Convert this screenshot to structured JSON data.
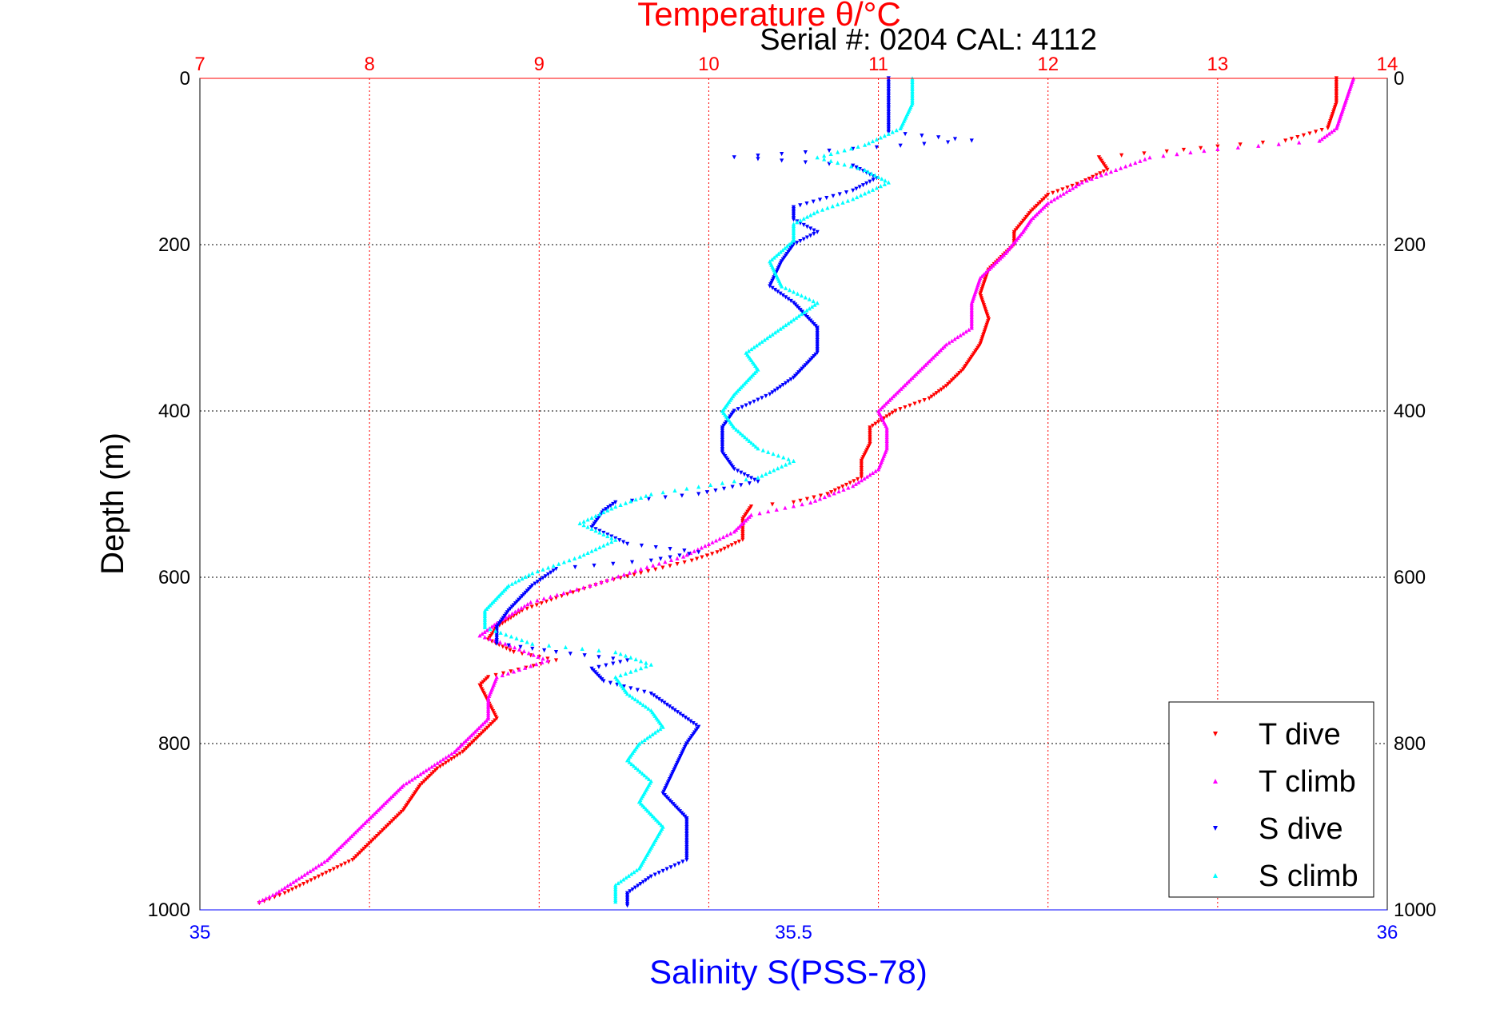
{
  "chart_data": {
    "type": "scatter",
    "title": "Temperature θ/°C",
    "subtitle": "Serial #: 0204  CAL: 4112",
    "ylabel": "Depth (m)",
    "xlabel_bottom": "Salinity S(PSS-78)",
    "xlabel_top": "Temperature θ/°C",
    "ylim": [
      0,
      1000
    ],
    "y_reversed": true,
    "xlim_top": [
      7,
      14
    ],
    "xlim_bottom": [
      35,
      36
    ],
    "yticks": [
      "0",
      "200",
      "400",
      "600",
      "800",
      "1000"
    ],
    "xticks_top": [
      "7",
      "8",
      "9",
      "10",
      "11",
      "12",
      "13",
      "14"
    ],
    "xticks_bottom": [
      "35",
      "35.5",
      "36"
    ],
    "grid": true,
    "legend_position": "bottom-right",
    "colors": {
      "top_axis": "#ff0000",
      "bottom_axis": "#0000ff",
      "grid": "#000000"
    },
    "series": [
      {
        "name": "T dive",
        "axis": "top",
        "color": "#ff0000",
        "marker": "triangle-down",
        "points": [
          [
            13.7,
            0
          ],
          [
            13.7,
            30
          ],
          [
            13.65,
            60
          ],
          [
            13.4,
            75
          ],
          [
            13.0,
            82
          ],
          [
            12.7,
            88
          ],
          [
            12.3,
            95
          ],
          [
            12.35,
            110
          ],
          [
            12.2,
            125
          ],
          [
            12.0,
            140
          ],
          [
            11.9,
            160
          ],
          [
            11.8,
            185
          ],
          [
            11.8,
            200
          ],
          [
            11.65,
            230
          ],
          [
            11.6,
            260
          ],
          [
            11.65,
            290
          ],
          [
            11.6,
            320
          ],
          [
            11.5,
            350
          ],
          [
            11.4,
            370
          ],
          [
            11.3,
            385
          ],
          [
            11.1,
            400
          ],
          [
            10.95,
            420
          ],
          [
            10.95,
            440
          ],
          [
            10.9,
            460
          ],
          [
            10.9,
            480
          ],
          [
            10.7,
            500
          ],
          [
            10.5,
            510
          ],
          [
            10.25,
            515
          ],
          [
            10.2,
            530
          ],
          [
            10.2,
            555
          ],
          [
            10.05,
            570
          ],
          [
            9.9,
            580
          ],
          [
            9.6,
            595
          ],
          [
            9.4,
            605
          ],
          [
            9.1,
            625
          ],
          [
            8.9,
            640
          ],
          [
            8.75,
            660
          ],
          [
            8.7,
            675
          ],
          [
            8.85,
            690
          ],
          [
            9.1,
            700
          ],
          [
            8.7,
            720
          ],
          [
            8.65,
            730
          ],
          [
            8.7,
            750
          ],
          [
            8.75,
            770
          ],
          [
            8.65,
            790
          ],
          [
            8.55,
            810
          ],
          [
            8.4,
            830
          ],
          [
            8.3,
            850
          ],
          [
            8.2,
            880
          ],
          [
            8.1,
            900
          ],
          [
            8.0,
            920
          ],
          [
            7.9,
            940
          ],
          [
            7.7,
            960
          ],
          [
            7.5,
            980
          ],
          [
            7.35,
            992
          ]
        ]
      },
      {
        "name": "T climb",
        "axis": "top",
        "color": "#ff00ff",
        "marker": "triangle-up",
        "points": [
          [
            13.8,
            0
          ],
          [
            13.75,
            30
          ],
          [
            13.7,
            60
          ],
          [
            13.6,
            75
          ],
          [
            13.0,
            85
          ],
          [
            12.6,
            95
          ],
          [
            12.4,
            110
          ],
          [
            12.2,
            125
          ],
          [
            12.0,
            150
          ],
          [
            11.9,
            170
          ],
          [
            11.85,
            185
          ],
          [
            11.75,
            210
          ],
          [
            11.6,
            240
          ],
          [
            11.55,
            270
          ],
          [
            11.55,
            300
          ],
          [
            11.4,
            320
          ],
          [
            11.3,
            340
          ],
          [
            11.2,
            360
          ],
          [
            11.1,
            380
          ],
          [
            11.0,
            400
          ],
          [
            11.05,
            420
          ],
          [
            11.05,
            445
          ],
          [
            11.0,
            470
          ],
          [
            10.85,
            490
          ],
          [
            10.6,
            510
          ],
          [
            10.25,
            525
          ],
          [
            10.15,
            545
          ],
          [
            10.0,
            560
          ],
          [
            9.85,
            575
          ],
          [
            9.6,
            590
          ],
          [
            9.3,
            610
          ],
          [
            8.95,
            630
          ],
          [
            8.75,
            655
          ],
          [
            8.65,
            670
          ],
          [
            8.8,
            680
          ],
          [
            9.05,
            700
          ],
          [
            8.75,
            720
          ],
          [
            8.7,
            745
          ],
          [
            8.7,
            770
          ],
          [
            8.6,
            790
          ],
          [
            8.5,
            810
          ],
          [
            8.35,
            830
          ],
          [
            8.2,
            850
          ],
          [
            8.05,
            880
          ],
          [
            7.95,
            900
          ],
          [
            7.85,
            920
          ],
          [
            7.75,
            940
          ],
          [
            7.6,
            960
          ],
          [
            7.45,
            980
          ],
          [
            7.35,
            990
          ]
        ]
      },
      {
        "name": "S dive",
        "axis": "bottom",
        "color": "#0000ff",
        "marker": "triangle-down",
        "points": [
          [
            35.58,
            0
          ],
          [
            35.58,
            30
          ],
          [
            35.58,
            65
          ],
          [
            35.65,
            75
          ],
          [
            35.55,
            85
          ],
          [
            35.45,
            95
          ],
          [
            35.55,
            105
          ],
          [
            35.57,
            120
          ],
          [
            35.55,
            135
          ],
          [
            35.5,
            155
          ],
          [
            35.5,
            170
          ],
          [
            35.52,
            185
          ],
          [
            35.5,
            200
          ],
          [
            35.49,
            220
          ],
          [
            35.48,
            250
          ],
          [
            35.5,
            270
          ],
          [
            35.52,
            300
          ],
          [
            35.52,
            330
          ],
          [
            35.5,
            360
          ],
          [
            35.48,
            380
          ],
          [
            35.45,
            400
          ],
          [
            35.44,
            420
          ],
          [
            35.44,
            450
          ],
          [
            35.45,
            470
          ],
          [
            35.47,
            485
          ],
          [
            35.42,
            500
          ],
          [
            35.35,
            510
          ],
          [
            35.34,
            520
          ],
          [
            35.33,
            540
          ],
          [
            35.36,
            560
          ],
          [
            35.42,
            570
          ],
          [
            35.38,
            580
          ],
          [
            35.3,
            590
          ],
          [
            35.28,
            610
          ],
          [
            35.27,
            625
          ],
          [
            35.26,
            640
          ],
          [
            35.25,
            660
          ],
          [
            35.25,
            680
          ],
          [
            35.3,
            690
          ],
          [
            35.36,
            700
          ],
          [
            35.33,
            710
          ],
          [
            35.34,
            725
          ],
          [
            35.38,
            740
          ],
          [
            35.4,
            760
          ],
          [
            35.42,
            780
          ],
          [
            35.41,
            800
          ],
          [
            35.4,
            830
          ],
          [
            35.39,
            860
          ],
          [
            35.41,
            890
          ],
          [
            35.41,
            920
          ],
          [
            35.41,
            940
          ],
          [
            35.38,
            960
          ],
          [
            35.36,
            980
          ],
          [
            35.36,
            995
          ]
        ]
      },
      {
        "name": "S climb",
        "axis": "bottom",
        "color": "#00ffff",
        "marker": "triangle-up",
        "points": [
          [
            35.6,
            0
          ],
          [
            35.6,
            30
          ],
          [
            35.59,
            60
          ],
          [
            35.56,
            80
          ],
          [
            35.52,
            95
          ],
          [
            35.56,
            110
          ],
          [
            35.58,
            125
          ],
          [
            35.55,
            145
          ],
          [
            35.52,
            160
          ],
          [
            35.5,
            175
          ],
          [
            35.5,
            195
          ],
          [
            35.48,
            220
          ],
          [
            35.49,
            250
          ],
          [
            35.52,
            270
          ],
          [
            35.5,
            290
          ],
          [
            35.48,
            310
          ],
          [
            35.46,
            330
          ],
          [
            35.47,
            350
          ],
          [
            35.45,
            380
          ],
          [
            35.44,
            400
          ],
          [
            35.45,
            420
          ],
          [
            35.47,
            445
          ],
          [
            35.5,
            460
          ],
          [
            35.47,
            480
          ],
          [
            35.38,
            500
          ],
          [
            35.35,
            515
          ],
          [
            35.32,
            535
          ],
          [
            35.35,
            555
          ],
          [
            35.32,
            575
          ],
          [
            35.28,
            595
          ],
          [
            35.26,
            610
          ],
          [
            35.25,
            625
          ],
          [
            35.24,
            640
          ],
          [
            35.24,
            660
          ],
          [
            35.28,
            680
          ],
          [
            35.35,
            690
          ],
          [
            35.38,
            705
          ],
          [
            35.35,
            720
          ],
          [
            35.36,
            740
          ],
          [
            35.38,
            760
          ],
          [
            35.39,
            780
          ],
          [
            35.37,
            800
          ],
          [
            35.36,
            820
          ],
          [
            35.38,
            845
          ],
          [
            35.37,
            870
          ],
          [
            35.39,
            900
          ],
          [
            35.38,
            925
          ],
          [
            35.37,
            950
          ],
          [
            35.35,
            970
          ],
          [
            35.35,
            990
          ]
        ]
      }
    ]
  }
}
